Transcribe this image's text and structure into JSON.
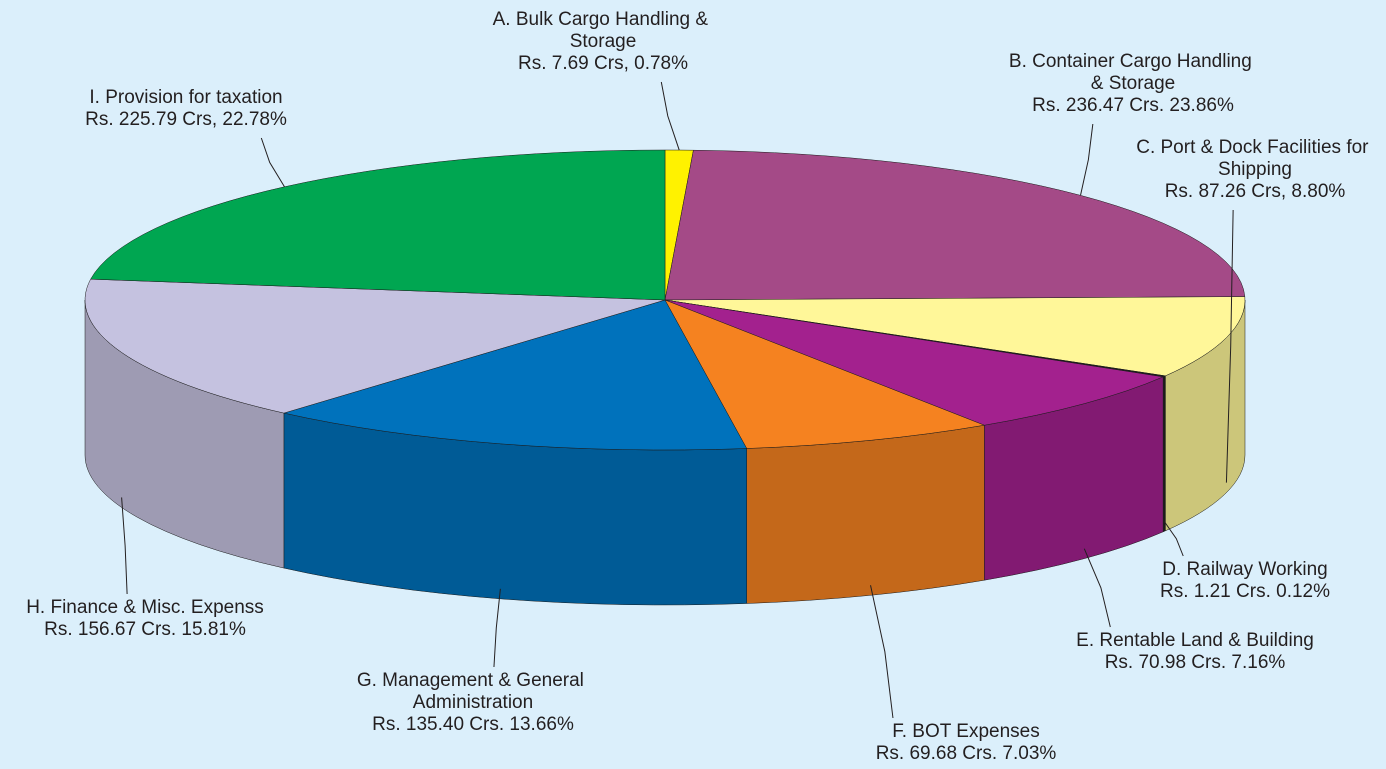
{
  "chart_data": {
    "type": "pie3d",
    "categories": [
      "A. Bulk Cargo Handling & Storage",
      "B. Container Cargo Handling & Storage",
      "C. Port & Dock Facilities for Shipping",
      "D. Railway Working",
      "E. Rentable Land & Building",
      "F. BOT Expenses",
      "G. Management & General Administration",
      "H. Finance & Misc. Expenss",
      "I. Provision for taxation"
    ],
    "values": [
      0.78,
      23.86,
      8.8,
      0.12,
      7.16,
      7.03,
      13.66,
      15.81,
      22.78
    ],
    "value_labels": [
      "Rs. 7.69 Crs, 0.78%",
      "Rs. 236.47 Crs. 23.86%",
      "Rs. 87.26 Crs, 8.80%",
      "Rs. 1.21 Crs. 0.12%",
      "Rs. 70.98 Crs. 7.16%",
      "Rs. 69.68 Crs. 7.03%",
      "Rs. 135.40 Crs. 13.66%",
      "Rs. 156.67 Crs. 15.81%",
      "Rs. 225.79 Crs, 22.78%"
    ],
    "colors": [
      "#fff200",
      "#a44a87",
      "#fff799",
      "#231f20",
      "#a3218e",
      "#f58220",
      "#0072bc",
      "#c5c2e0",
      "#00a651"
    ]
  }
}
